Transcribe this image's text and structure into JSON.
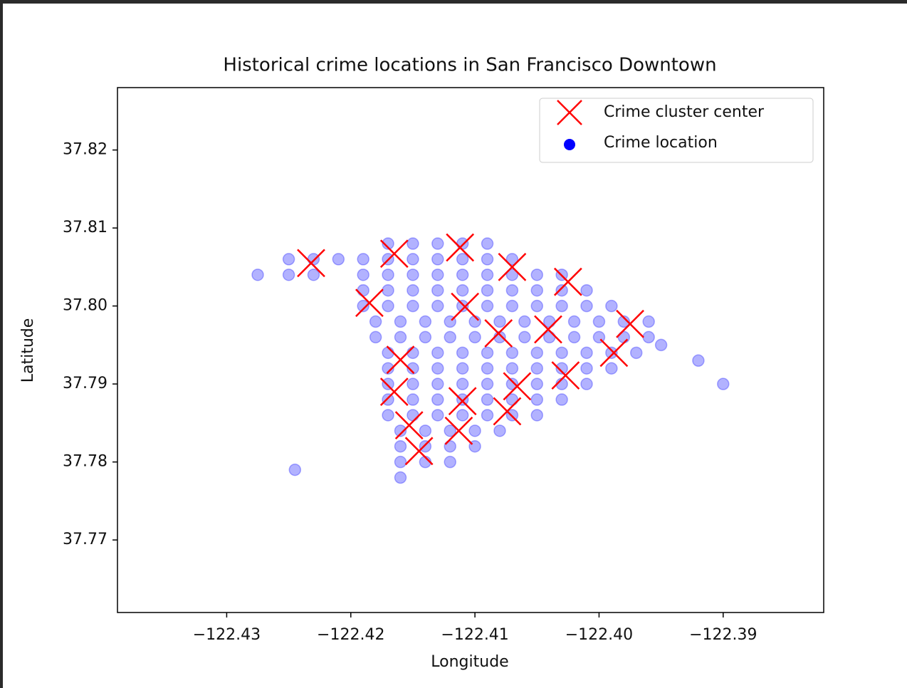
{
  "chart_data": {
    "type": "scatter",
    "title": "Historical crime locations in San Francisco Downtown",
    "x_label": "Longitude",
    "y_label": "Latitude",
    "xlim": [
      -122.4388,
      -122.3819
    ],
    "ylim": [
      37.7607,
      37.828
    ],
    "xticks": [
      {
        "value": -122.43,
        "label": "−122.43"
      },
      {
        "value": -122.42,
        "label": "−122.42"
      },
      {
        "value": -122.41,
        "label": "−122.41"
      },
      {
        "value": -122.4,
        "label": "−122.40"
      },
      {
        "value": -122.39,
        "label": "−122.39"
      }
    ],
    "yticks": [
      {
        "value": 37.77,
        "label": "37.77"
      },
      {
        "value": 37.78,
        "label": "37.78"
      },
      {
        "value": 37.79,
        "label": "37.79"
      },
      {
        "value": 37.8,
        "label": "37.80"
      },
      {
        "value": 37.81,
        "label": "37.81"
      },
      {
        "value": 37.82,
        "label": "37.82"
      }
    ],
    "legend": "upper right",
    "series": [
      {
        "name": "Crime cluster center",
        "color": "#ff0000",
        "marker": "x",
        "x": [
          -122.4232,
          -122.4165,
          -122.4112,
          -122.407,
          -122.4025,
          -122.4185,
          -122.4108,
          -122.4081,
          -122.4041,
          -122.3975,
          -122.3988,
          -122.416,
          -122.4165,
          -122.4027,
          -122.411,
          -122.4066,
          -122.4074,
          -122.4153,
          -122.4113,
          -122.4145
        ],
        "y": [
          37.8055,
          37.8067,
          37.8075,
          37.805,
          37.8031,
          37.8004,
          37.7999,
          37.7965,
          37.797,
          37.7977,
          37.794,
          37.7931,
          37.789,
          37.7911,
          37.7878,
          37.7897,
          37.7865,
          37.7847,
          37.784,
          37.7814
        ]
      },
      {
        "name": "Crime location",
        "color": "#0000ff",
        "marker": "o",
        "alpha": 0.3,
        "x": [
          -122.417,
          -122.415,
          -122.413,
          -122.411,
          -122.409,
          -122.425,
          -122.423,
          -122.421,
          -122.419,
          -122.417,
          -122.415,
          -122.413,
          -122.411,
          -122.409,
          -122.407,
          -122.425,
          -122.423,
          -122.419,
          -122.417,
          -122.415,
          -122.413,
          -122.411,
          -122.409,
          -122.407,
          -122.405,
          -122.403,
          -122.419,
          -122.417,
          -122.415,
          -122.413,
          -122.411,
          -122.409,
          -122.407,
          -122.405,
          -122.403,
          -122.401,
          -122.419,
          -122.417,
          -122.415,
          -122.413,
          -122.411,
          -122.409,
          -122.407,
          -122.405,
          -122.403,
          -122.401,
          -122.399,
          -122.418,
          -122.416,
          -122.414,
          -122.412,
          -122.41,
          -122.408,
          -122.406,
          -122.404,
          -122.402,
          -122.4,
          -122.398,
          -122.396,
          -122.418,
          -122.416,
          -122.414,
          -122.412,
          -122.41,
          -122.408,
          -122.406,
          -122.404,
          -122.402,
          -122.4,
          -122.398,
          -122.396,
          -122.417,
          -122.415,
          -122.413,
          -122.411,
          -122.409,
          -122.407,
          -122.405,
          -122.403,
          -122.401,
          -122.399,
          -122.397,
          -122.417,
          -122.415,
          -122.413,
          -122.411,
          -122.409,
          -122.407,
          -122.405,
          -122.403,
          -122.401,
          -122.399,
          -122.417,
          -122.415,
          -122.413,
          -122.411,
          -122.409,
          -122.407,
          -122.405,
          -122.403,
          -122.401,
          -122.417,
          -122.415,
          -122.413,
          -122.411,
          -122.409,
          -122.407,
          -122.405,
          -122.403,
          -122.417,
          -122.415,
          -122.413,
          -122.411,
          -122.409,
          -122.407,
          -122.405,
          -122.416,
          -122.414,
          -122.412,
          -122.41,
          -122.408,
          -122.416,
          -122.414,
          -122.412,
          -122.41,
          -122.416,
          -122.414,
          -122.412,
          -122.416,
          -122.4245,
          -122.392,
          -122.39,
          -122.395,
          -122.4275
        ],
        "y": [
          37.808,
          37.808,
          37.808,
          37.808,
          37.808,
          37.806,
          37.806,
          37.806,
          37.806,
          37.806,
          37.806,
          37.806,
          37.806,
          37.806,
          37.806,
          37.804,
          37.804,
          37.804,
          37.804,
          37.804,
          37.804,
          37.804,
          37.804,
          37.804,
          37.804,
          37.804,
          37.802,
          37.802,
          37.802,
          37.802,
          37.802,
          37.802,
          37.802,
          37.802,
          37.802,
          37.802,
          37.8,
          37.8,
          37.8,
          37.8,
          37.8,
          37.8,
          37.8,
          37.8,
          37.8,
          37.8,
          37.8,
          37.798,
          37.798,
          37.798,
          37.798,
          37.798,
          37.798,
          37.798,
          37.798,
          37.798,
          37.798,
          37.798,
          37.798,
          37.796,
          37.796,
          37.796,
          37.796,
          37.796,
          37.796,
          37.796,
          37.796,
          37.796,
          37.796,
          37.796,
          37.796,
          37.794,
          37.794,
          37.794,
          37.794,
          37.794,
          37.794,
          37.794,
          37.794,
          37.794,
          37.794,
          37.794,
          37.792,
          37.792,
          37.792,
          37.792,
          37.792,
          37.792,
          37.792,
          37.792,
          37.792,
          37.792,
          37.79,
          37.79,
          37.79,
          37.79,
          37.79,
          37.79,
          37.79,
          37.79,
          37.79,
          37.788,
          37.788,
          37.788,
          37.788,
          37.788,
          37.788,
          37.788,
          37.788,
          37.786,
          37.786,
          37.786,
          37.786,
          37.786,
          37.786,
          37.786,
          37.784,
          37.784,
          37.784,
          37.784,
          37.784,
          37.782,
          37.782,
          37.782,
          37.782,
          37.78,
          37.78,
          37.78,
          37.778,
          37.779,
          37.793,
          37.79,
          37.795,
          37.804
        ]
      }
    ]
  }
}
